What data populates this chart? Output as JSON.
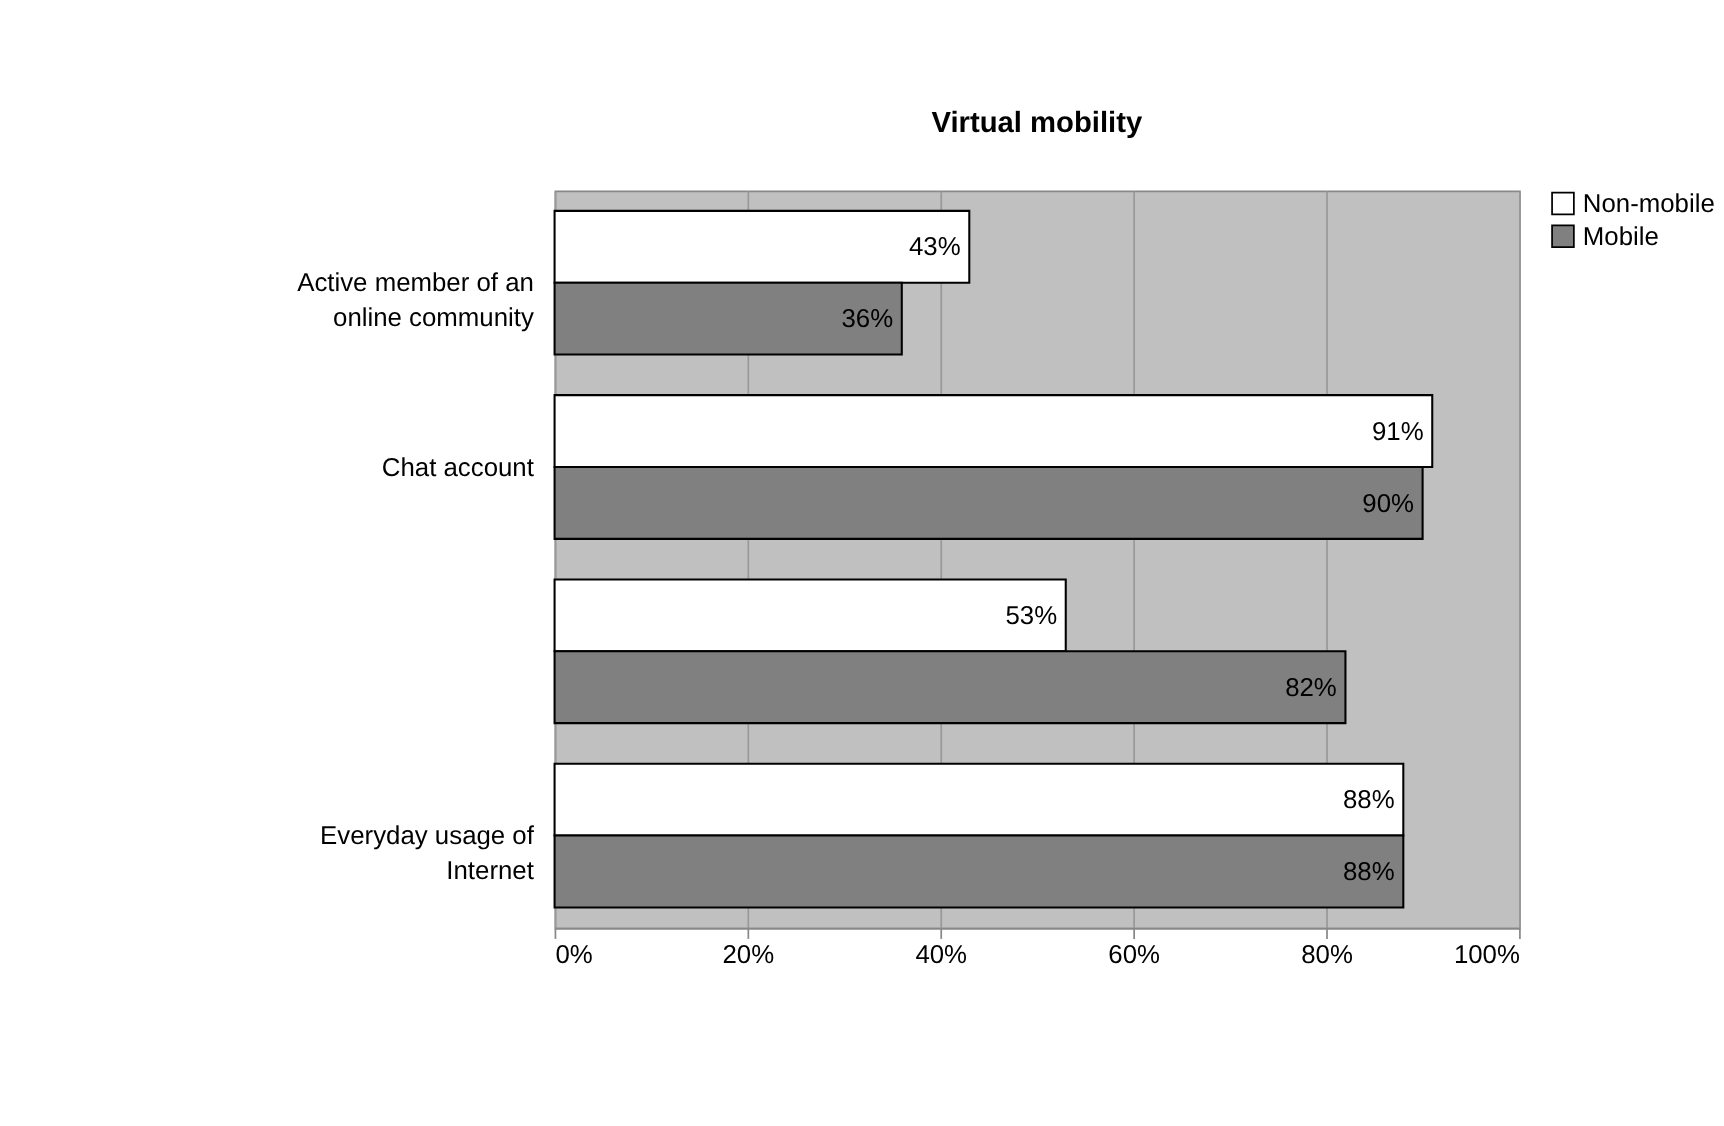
{
  "chart_data": {
    "type": "bar",
    "orientation": "horizontal",
    "title": "Virtual mobility",
    "categories": [
      "Active member of an online community",
      "Chat account",
      null,
      "Everyday usage of Internet"
    ],
    "series": [
      {
        "name": "Non-mobile",
        "color": "#ffffff",
        "values": [
          43,
          91,
          53,
          88
        ],
        "value_labels": [
          "43%",
          "91%",
          "53%",
          "88%"
        ]
      },
      {
        "name": "Mobile",
        "color": "#808080",
        "values": [
          36,
          90,
          82,
          88
        ],
        "value_labels": [
          "36%",
          "90%",
          "82%",
          "88%"
        ]
      }
    ],
    "xlim": [
      0,
      100
    ],
    "xticks": [
      {
        "value": 0,
        "label": "0%"
      },
      {
        "value": 20,
        "label": "20%"
      },
      {
        "value": 40,
        "label": "40%"
      },
      {
        "value": 60,
        "label": "60%"
      },
      {
        "value": 80,
        "label": "80%"
      },
      {
        "value": 100,
        "label": "100%"
      }
    ],
    "grid": "x",
    "legend": "right"
  }
}
